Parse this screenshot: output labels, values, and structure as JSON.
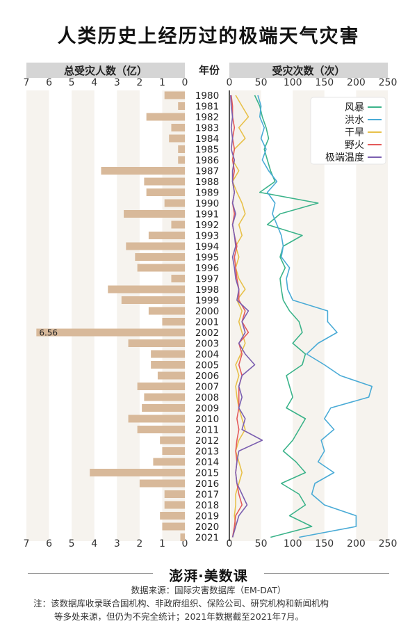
{
  "title": "人类历史上经历过的极端天气灾害",
  "left_header": "总受灾人数（亿）",
  "year_header": "年份",
  "right_header": "受灾次数（次）",
  "brand": "澎湃·美数课",
  "source": "数据来源：国际灾害数据库（EM-DAT）",
  "note_line1": "注：该数据库收录联合国机构、非政府组织、保险公司、研究机构和新闻机构",
  "note_line2": "等多处来源，但仍为不完全统计；2021年数据截至2021年7月。",
  "chart_data": [
    {
      "type": "bar",
      "orientation": "horizontal",
      "xlabel": "总受灾人数（亿）",
      "xlim": [
        0,
        7
      ],
      "xticks": [
        7,
        6,
        5,
        4,
        3,
        2,
        1,
        0
      ],
      "categories": [
        1980,
        1981,
        1982,
        1983,
        1984,
        1985,
        1986,
        1987,
        1988,
        1989,
        1990,
        1991,
        1992,
        1993,
        1994,
        1995,
        1996,
        1997,
        1998,
        1999,
        2000,
        2001,
        2002,
        2003,
        2004,
        2005,
        2006,
        2007,
        2008,
        2009,
        2010,
        2011,
        2012,
        2013,
        2014,
        2015,
        2016,
        2017,
        2018,
        2019,
        2020,
        2021
      ],
      "values": [
        0.9,
        0.3,
        1.7,
        0.6,
        0.7,
        0.3,
        0.3,
        3.7,
        1.8,
        1.7,
        0.9,
        2.7,
        0.6,
        1.6,
        2.6,
        2.2,
        2.1,
        0.6,
        3.4,
        2.8,
        1.6,
        1.0,
        6.56,
        2.5,
        1.5,
        1.5,
        1.2,
        2.1,
        1.8,
        1.9,
        2.5,
        2.1,
        1.1,
        1.0,
        1.4,
        4.2,
        2.0,
        0.9,
        0.9,
        1.1,
        1.0,
        0.2
      ],
      "data_labels": [
        {
          "year": 2002,
          "text": "6.56"
        }
      ],
      "color": "#d8b99a"
    },
    {
      "type": "line",
      "xlabel": "受灾次数（次）",
      "xlim": [
        0,
        250
      ],
      "xticks": [
        0,
        50,
        100,
        150,
        200,
        250
      ],
      "legend_position": "top-right",
      "y": [
        1980,
        1981,
        1982,
        1983,
        1984,
        1985,
        1986,
        1987,
        1988,
        1989,
        1990,
        1991,
        1992,
        1993,
        1994,
        1995,
        1996,
        1997,
        1998,
        1999,
        2000,
        2001,
        2002,
        2003,
        2004,
        2005,
        2006,
        2007,
        2008,
        2009,
        2010,
        2011,
        2012,
        2013,
        2014,
        2015,
        2016,
        2017,
        2018,
        2019,
        2020,
        2021
      ],
      "series": [
        {
          "name": "风暴",
          "color": "#3bb38a",
          "values": [
            40,
            48,
            52,
            58,
            62,
            55,
            60,
            65,
            72,
            48,
            140,
            80,
            60,
            115,
            85,
            80,
            88,
            80,
            82,
            85,
            95,
            110,
            115,
            100,
            120,
            115,
            90,
            95,
            100,
            90,
            120,
            110,
            100,
            85,
            105,
            120,
            82,
            110,
            120,
            95,
            130,
            65
          ]
        },
        {
          "name": "洪水",
          "color": "#4aabd6",
          "values": [
            45,
            50,
            48,
            55,
            50,
            58,
            52,
            62,
            75,
            60,
            72,
            68,
            75,
            82,
            85,
            82,
            95,
            90,
            92,
            100,
            155,
            155,
            170,
            140,
            122,
            150,
            175,
            225,
            220,
            160,
            150,
            165,
            145,
            150,
            140,
            165,
            135,
            130,
            150,
            200,
            200,
            110
          ]
        },
        {
          "name": "干旱",
          "color": "#e8c14a",
          "values": [
            10,
            20,
            30,
            15,
            25,
            8,
            5,
            15,
            5,
            12,
            20,
            25,
            15,
            20,
            10,
            15,
            10,
            15,
            25,
            12,
            20,
            15,
            20,
            25,
            18,
            10,
            15,
            10,
            12,
            15,
            20,
            25,
            15,
            10,
            15,
            20,
            15,
            10,
            10,
            8,
            10,
            5
          ]
        },
        {
          "name": "野火",
          "color": "#e45a5a",
          "values": [
            3,
            5,
            5,
            8,
            5,
            8,
            5,
            8,
            5,
            8,
            5,
            8,
            5,
            8,
            12,
            8,
            10,
            12,
            15,
            15,
            25,
            20,
            30,
            15,
            20,
            15,
            20,
            15,
            15,
            15,
            12,
            15,
            12,
            10,
            12,
            10,
            12,
            15,
            20,
            10,
            8,
            5
          ]
        },
        {
          "name": "极端温度",
          "color": "#7b5fb0",
          "values": [
            2,
            3,
            5,
            3,
            5,
            3,
            8,
            5,
            5,
            8,
            5,
            10,
            5,
            8,
            10,
            5,
            8,
            10,
            15,
            12,
            30,
            20,
            25,
            15,
            25,
            40,
            20,
            15,
            20,
            15,
            25,
            20,
            52,
            15,
            12,
            10,
            12,
            20,
            28,
            15,
            10,
            5
          ]
        }
      ]
    }
  ]
}
